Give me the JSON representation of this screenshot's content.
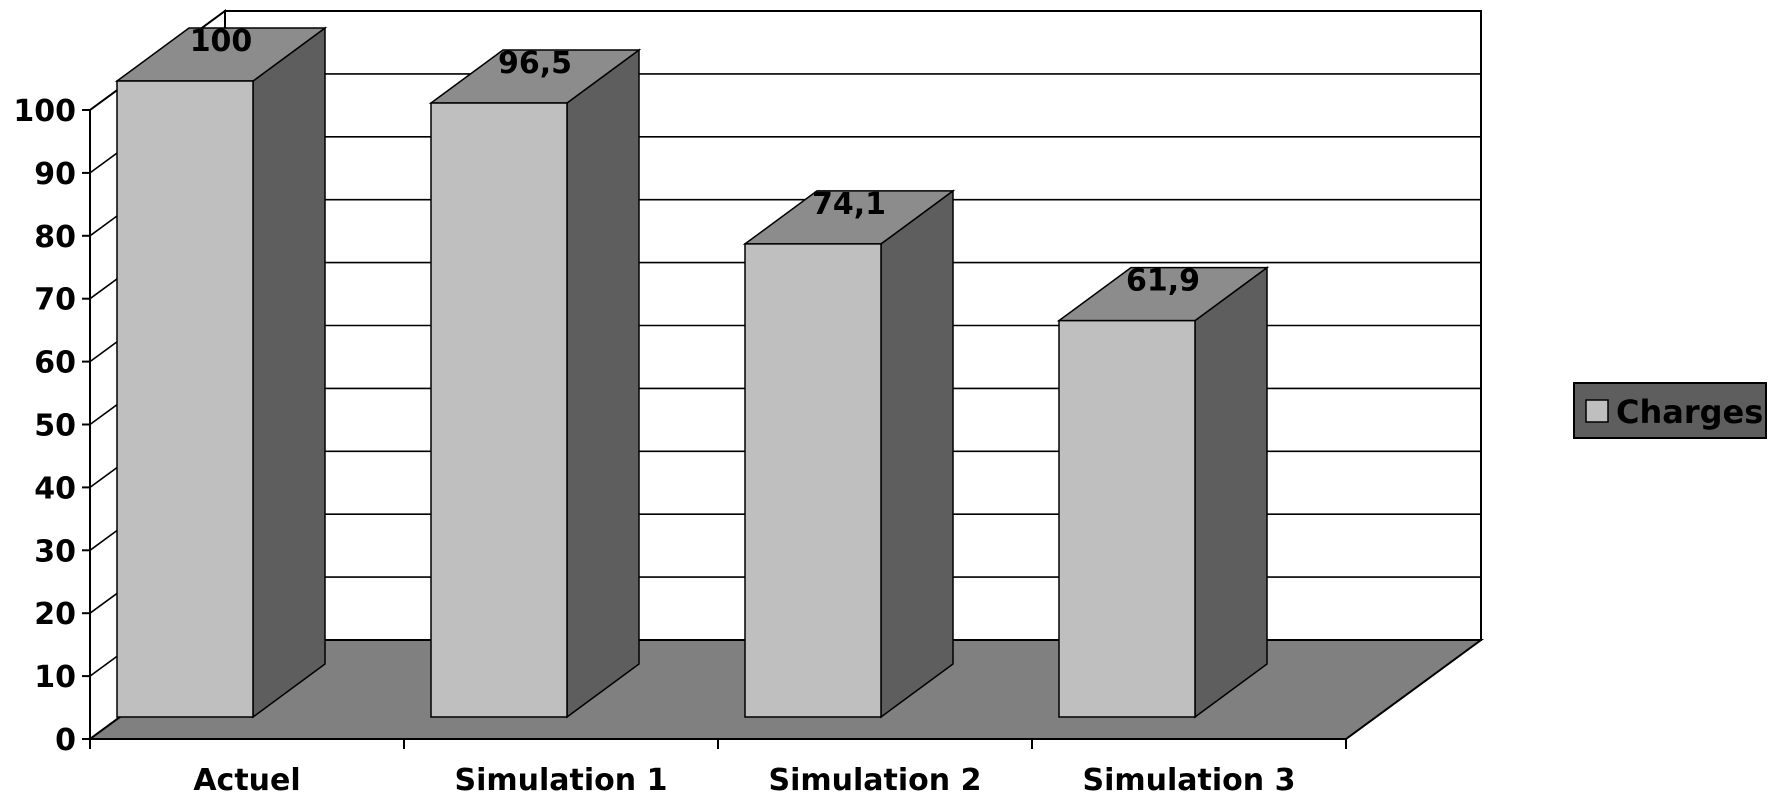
{
  "chart_data": {
    "type": "bar",
    "style": "3d-column",
    "categories": [
      "Actuel",
      "Simulation 1",
      "Simulation 2",
      "Simulation 3"
    ],
    "series": [
      {
        "name": "Charges",
        "values": [
          100,
          96.5,
          74.1,
          61.9
        ],
        "labels": [
          "100",
          "96,5",
          "74,1",
          "61,9"
        ]
      }
    ],
    "ylim": [
      0,
      100
    ],
    "yticks": [
      0,
      10,
      20,
      30,
      40,
      50,
      60,
      70,
      80,
      90,
      100
    ],
    "grid": true,
    "legend": "right",
    "colors": {
      "bar_front": "#bfbfbf",
      "bar_top": "#8c8c8c",
      "bar_side": "#5e5e5e",
      "floor": "#808080",
      "legend_bg": "#5e5e5e",
      "legend_swatch": "#bfbfbf"
    }
  }
}
